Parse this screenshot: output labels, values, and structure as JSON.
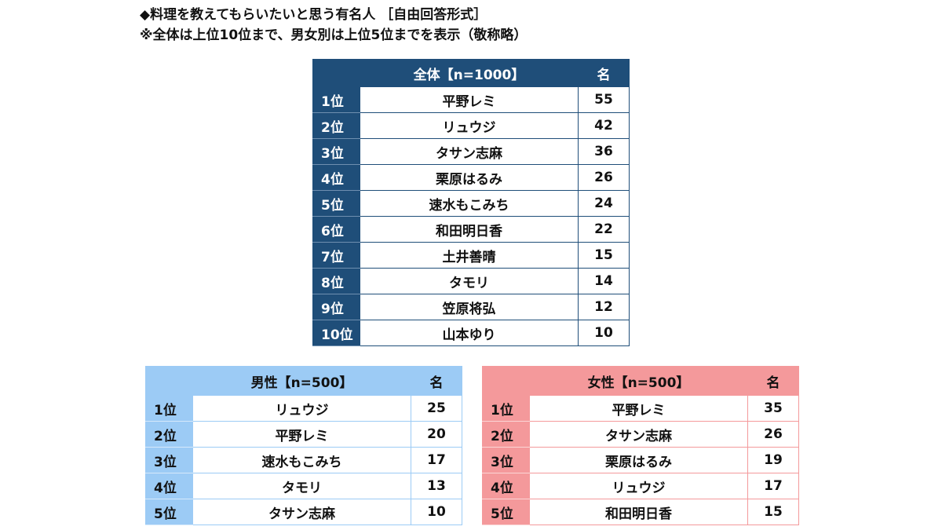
{
  "title_line1": "◆料理を教えてもらいたいと思う有名人 ［自由回答形式］",
  "title_line2": "※全体は上位10位まで、男女別は上位5位までを表示（敬称略）",
  "colors": {
    "overall_header": "#1f4e79",
    "male_header": "#9ccbf5",
    "female_header": "#f4999b"
  },
  "chart_data": [
    {
      "type": "table",
      "title": "全体【n=1000】",
      "unit_header": "名",
      "ranks": [
        "1位",
        "2位",
        "3位",
        "4位",
        "5位",
        "6位",
        "7位",
        "8位",
        "9位",
        "10位"
      ],
      "categories": [
        "平野レミ",
        "リュウジ",
        "タサン志麻",
        "栗原はるみ",
        "速水もこみち",
        "和田明日香",
        "土井善晴",
        "タモリ",
        "笠原将弘",
        "山本ゆり"
      ],
      "values": [
        55,
        42,
        36,
        26,
        24,
        22,
        15,
        14,
        12,
        10
      ]
    },
    {
      "type": "table",
      "title": "男性【n=500】",
      "unit_header": "名",
      "ranks": [
        "1位",
        "2位",
        "3位",
        "4位",
        "5位"
      ],
      "categories": [
        "リュウジ",
        "平野レミ",
        "速水もこみち",
        "タモリ",
        "タサン志麻"
      ],
      "values": [
        25,
        20,
        17,
        13,
        10
      ]
    },
    {
      "type": "table",
      "title": "女性【n=500】",
      "unit_header": "名",
      "ranks": [
        "1位",
        "2位",
        "3位",
        "4位",
        "5位"
      ],
      "categories": [
        "平野レミ",
        "タサン志麻",
        "栗原はるみ",
        "リュウジ",
        "和田明日香"
      ],
      "values": [
        35,
        26,
        19,
        17,
        15
      ]
    }
  ]
}
